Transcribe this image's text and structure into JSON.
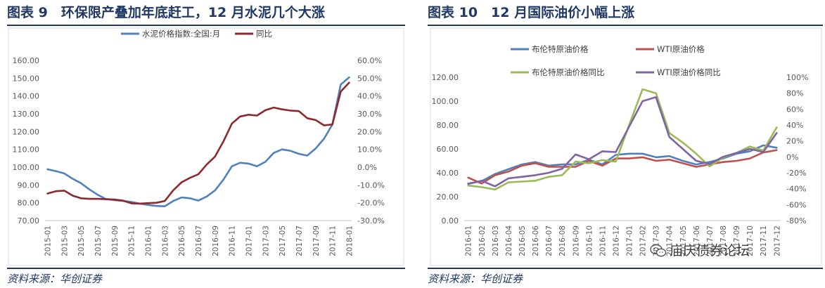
{
  "left": {
    "title": "图表 9　环保限产叠加年底赶工，12 月水泥几个大涨",
    "source": "资料来源：华创证券"
  },
  "right": {
    "title": "图表 10　12 月国际油价小幅上涨",
    "source": "资料来源：华创证券",
    "watermark": "庙庆债券论坛",
    "watermark_icon": "wechat-icon"
  },
  "chart_data": [
    {
      "type": "line",
      "title": "",
      "xlabel": "",
      "ylabel": "",
      "x_tick_labels": [
        "2015-01",
        "2015-03",
        "2015-05",
        "2015-07",
        "2015-09",
        "2015-11",
        "2016-01",
        "2016-03",
        "2016-05",
        "2016-07",
        "2016-09",
        "2016-11",
        "2017-01",
        "2017-03",
        "2017-05",
        "2017-07",
        "2017-09",
        "2017-11",
        "2018-01"
      ],
      "x": [
        "2015-01",
        "2015-02",
        "2015-03",
        "2015-04",
        "2015-05",
        "2015-06",
        "2015-07",
        "2015-08",
        "2015-09",
        "2015-10",
        "2015-11",
        "2015-12",
        "2016-01",
        "2016-02",
        "2016-03",
        "2016-04",
        "2016-05",
        "2016-06",
        "2016-07",
        "2016-08",
        "2016-09",
        "2016-10",
        "2016-11",
        "2016-12",
        "2017-01",
        "2017-02",
        "2017-03",
        "2017-04",
        "2017-05",
        "2017-06",
        "2017-07",
        "2017-08",
        "2017-09",
        "2017-10",
        "2017-11",
        "2017-12",
        "2018-01"
      ],
      "ylim_left": [
        70,
        160
      ],
      "yticks_left": [
        "70.00",
        "80.00",
        "90.00",
        "100.00",
        "110.00",
        "120.00",
        "130.00",
        "140.00",
        "150.00",
        "160.00"
      ],
      "ylim_right": [
        -30,
        60
      ],
      "yticks_right": [
        "-30.0%",
        "-20.0%",
        "-10.0%",
        "0.0%",
        "10.0%",
        "20.0%",
        "30.0%",
        "40.0%",
        "50.0%",
        "60.0%"
      ],
      "legend_position": "top",
      "grid": false,
      "series": [
        {
          "name": "水泥价格指数:全国:月",
          "axis": "left",
          "color": "#4f81bd",
          "values": [
            98.8,
            97.8,
            96.5,
            93.5,
            91.0,
            87.5,
            84.5,
            82.0,
            81.5,
            81.0,
            80.5,
            79.5,
            78.8,
            78.2,
            78.0,
            81.0,
            83.0,
            82.5,
            81.2,
            83.5,
            87.0,
            93.0,
            100.5,
            102.5,
            102.0,
            100.5,
            103.0,
            108.0,
            110.0,
            109.2,
            107.5,
            106.5,
            110.5,
            116.0,
            124.0,
            146.5,
            150.5
          ]
        },
        {
          "name": "同比",
          "axis": "right",
          "color": "#8b2a2e",
          "values": [
            -14.8,
            -13.5,
            -13.2,
            -16.0,
            -17.5,
            -17.8,
            -17.8,
            -18.0,
            -18.2,
            -18.8,
            -20.3,
            -20.5,
            -20.2,
            -20.0,
            -19.0,
            -13.0,
            -8.5,
            -6.0,
            -4.0,
            1.5,
            6.0,
            14.5,
            24.5,
            28.5,
            29.5,
            29.0,
            32.0,
            33.5,
            32.5,
            31.8,
            31.5,
            27.5,
            26.5,
            23.5,
            24.0,
            42.5,
            47.5
          ]
        }
      ]
    },
    {
      "type": "line",
      "title": "",
      "xlabel": "",
      "ylabel": "",
      "x_tick_labels": [
        "2016-01",
        "2016-02",
        "2016-03",
        "2016-04",
        "2016-05",
        "2016-06",
        "2016-07",
        "2016-08",
        "2016-09",
        "2016-10",
        "2016-11",
        "2016-12",
        "2017-01",
        "2017-02",
        "2017-03",
        "2017-04",
        "2017-05",
        "2017-06",
        "2017-07",
        "2017-08",
        "2017-09",
        "2017-10",
        "2017-11",
        "2017-12"
      ],
      "x": [
        "2016-01",
        "2016-02",
        "2016-03",
        "2016-04",
        "2016-05",
        "2016-06",
        "2016-07",
        "2016-08",
        "2016-09",
        "2016-10",
        "2016-11",
        "2016-12",
        "2017-01",
        "2017-02",
        "2017-03",
        "2017-04",
        "2017-05",
        "2017-06",
        "2017-07",
        "2017-08",
        "2017-09",
        "2017-10",
        "2017-11",
        "2017-12"
      ],
      "ylim_left": [
        0,
        120
      ],
      "yticks_left": [
        "0.00",
        "20.00",
        "40.00",
        "60.00",
        "80.00",
        "100.00",
        "120.00"
      ],
      "ylim_right": [
        -80,
        100
      ],
      "yticks_right": [
        "-80%",
        "-60%",
        "-40%",
        "-20%",
        "0%",
        "20%",
        "40%",
        "60%",
        "80%",
        "100%"
      ],
      "legend_position": "top",
      "grid": false,
      "series": [
        {
          "name": "布伦特原油价格",
          "axis": "left",
          "color": "#4f81bd",
          "values": [
            31,
            33,
            39,
            43,
            47,
            49,
            46,
            47,
            47,
            51,
            47,
            55,
            56,
            56,
            53,
            54,
            50,
            47,
            49,
            52,
            56,
            58,
            63,
            61
          ]
        },
        {
          "name": "WTI原油价格",
          "axis": "left",
          "color": "#c0504d",
          "values": [
            36,
            31,
            38,
            41,
            46,
            48,
            45,
            45,
            45,
            50,
            46,
            52,
            52,
            53,
            50,
            51,
            48,
            45,
            47,
            49,
            50,
            52,
            57,
            59
          ]
        },
        {
          "name": "布伦特原油价格同比",
          "axis": "right",
          "color": "#9bbb59",
          "values": [
            -36,
            -38,
            -41,
            -32,
            -31,
            -30,
            -25,
            -23,
            -6,
            -8,
            -4,
            -6,
            40,
            85,
            80,
            30,
            18,
            4,
            -12,
            -1,
            5,
            13,
            8,
            37
          ]
        },
        {
          "name": "WTI原油价格同比",
          "axis": "right",
          "color": "#8064a2",
          "values": [
            -34,
            -30,
            -37,
            -27,
            -25,
            -23,
            -20,
            -15,
            3,
            -3,
            7,
            6,
            38,
            70,
            75,
            25,
            10,
            -5,
            -9,
            0,
            5,
            10,
            6,
            30
          ]
        }
      ]
    }
  ]
}
